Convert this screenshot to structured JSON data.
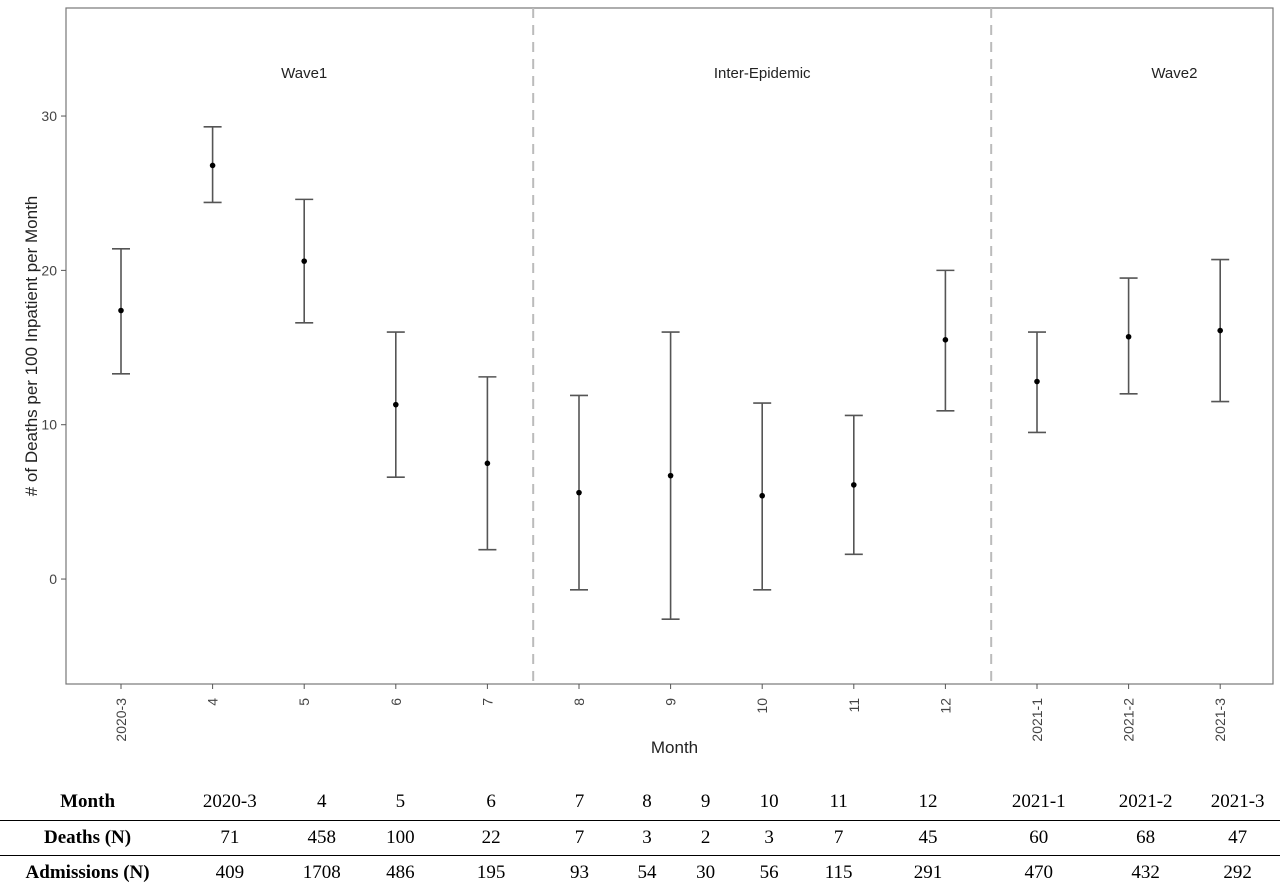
{
  "chart_data": {
    "type": "scatter",
    "subtype": "point-with-error-bars",
    "xlabel": "Month",
    "ylabel": "# of Deaths per 100 Inpatient per Month",
    "categories": [
      "2020-3",
      "4",
      "5",
      "6",
      "7",
      "8",
      "9",
      "10",
      "11",
      "12",
      "2021-1",
      "2021-2",
      "2021-3"
    ],
    "series": [
      {
        "values": [
          17.4,
          26.8,
          20.6,
          11.3,
          7.5,
          5.6,
          6.7,
          5.4,
          6.1,
          15.5,
          12.8,
          15.7,
          16.1
        ],
        "lower": [
          13.3,
          24.4,
          16.6,
          6.6,
          1.9,
          -0.7,
          -2.6,
          -0.7,
          1.6,
          10.9,
          9.5,
          12.0,
          11.5
        ],
        "upper": [
          21.4,
          29.3,
          24.6,
          16.0,
          13.1,
          11.9,
          16.0,
          11.4,
          10.6,
          20.0,
          16.0,
          19.5,
          20.7
        ]
      }
    ],
    "ylim": [
      -6.8,
      37
    ],
    "yticks": [
      0,
      10,
      20,
      30
    ],
    "grid": false,
    "vlines": [
      4.5,
      9.5
    ],
    "annotations": [
      {
        "text": "Wave1",
        "x": 2
      },
      {
        "text": "Inter-Epidemic",
        "x": 7
      },
      {
        "text": "Wave2",
        "x": 11.5
      }
    ]
  },
  "table": {
    "rows": [
      {
        "head": "Month",
        "cells": [
          "2020-3",
          "4",
          "5",
          "6",
          "7",
          "8",
          "9",
          "10",
          "11",
          "12",
          "2021-1",
          "2021-2",
          "2021-3"
        ]
      },
      {
        "head": "Deaths (N)",
        "cells": [
          "71",
          "458",
          "100",
          "22",
          "7",
          "3",
          "2",
          "3",
          "7",
          "45",
          "60",
          "68",
          "47"
        ]
      },
      {
        "head": "Admissions (N)",
        "cells": [
          "409",
          "1708",
          "486",
          "195",
          "93",
          "54",
          "30",
          "56",
          "115",
          "291",
          "470",
          "432",
          "292"
        ]
      }
    ]
  }
}
